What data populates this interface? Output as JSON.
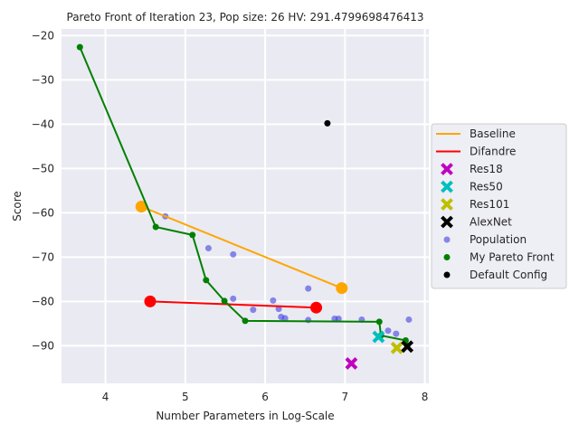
{
  "chart_data": {
    "type": "scatter",
    "title": "Pareto Front of Iteration 23, Pop size: 26 HV: 291.4799698476413",
    "xlabel": "Number Parameters in Log-Scale",
    "ylabel": "Score",
    "xlim": [
      3.45,
      8.05
    ],
    "ylim": [
      -98.5,
      -18.5
    ],
    "xticks": [
      4,
      5,
      6,
      7,
      8
    ],
    "yticks": [
      -20,
      -30,
      -40,
      -50,
      -60,
      -70,
      -80,
      -90
    ],
    "grid": true,
    "legend_position": "center-right",
    "series": [
      {
        "name": "Baseline",
        "kind": "line",
        "color": "#ffa500",
        "points": [
          [
            4.45,
            -58.6
          ],
          [
            6.96,
            -77.0
          ]
        ]
      },
      {
        "name": "Difandre",
        "kind": "line",
        "color": "#ff0000",
        "points": [
          [
            4.56,
            -80.0
          ],
          [
            6.64,
            -81.4
          ]
        ]
      },
      {
        "name": "Res18",
        "kind": "x-marker",
        "color": "#bf00bf",
        "points": [
          [
            7.08,
            -94.0
          ]
        ]
      },
      {
        "name": "Res50",
        "kind": "x-marker",
        "color": "#00bfbf",
        "points": [
          [
            7.42,
            -88.0
          ]
        ]
      },
      {
        "name": "Res101",
        "kind": "x-marker",
        "color": "#bfbf00",
        "points": [
          [
            7.65,
            -90.5
          ]
        ]
      },
      {
        "name": "AlexNet",
        "kind": "x-marker",
        "color": "#000000",
        "points": [
          [
            7.78,
            -90.2
          ]
        ]
      },
      {
        "name": "Population",
        "kind": "scatter",
        "color": "#4040e0",
        "points": [
          [
            4.75,
            -60.8
          ],
          [
            5.29,
            -68.0
          ],
          [
            5.6,
            -69.4
          ],
          [
            5.6,
            -79.4
          ],
          [
            5.85,
            -81.9
          ],
          [
            6.1,
            -79.8
          ],
          [
            6.17,
            -81.7
          ],
          [
            6.2,
            -83.5
          ],
          [
            6.25,
            -83.8
          ],
          [
            6.54,
            -77.1
          ],
          [
            6.54,
            -84.2
          ],
          [
            6.87,
            -83.9
          ],
          [
            6.92,
            -83.9
          ],
          [
            7.21,
            -84.1
          ],
          [
            7.54,
            -86.6
          ],
          [
            7.64,
            -87.3
          ],
          [
            7.8,
            -84.1
          ]
        ]
      },
      {
        "name": "My Pareto Front",
        "kind": "line-scatter",
        "color": "#008000",
        "points": [
          [
            3.68,
            -22.6
          ],
          [
            4.63,
            -63.2
          ],
          [
            5.09,
            -65.0
          ],
          [
            5.26,
            -75.2
          ],
          [
            5.49,
            -79.9
          ],
          [
            5.75,
            -84.4
          ],
          [
            7.43,
            -84.6
          ],
          [
            7.45,
            -87.7
          ],
          [
            7.76,
            -88.8
          ],
          [
            7.78,
            -90.0
          ]
        ]
      },
      {
        "name": "Default Config",
        "kind": "scatter",
        "color": "#000000",
        "points": [
          [
            6.78,
            -39.8
          ]
        ]
      }
    ]
  }
}
